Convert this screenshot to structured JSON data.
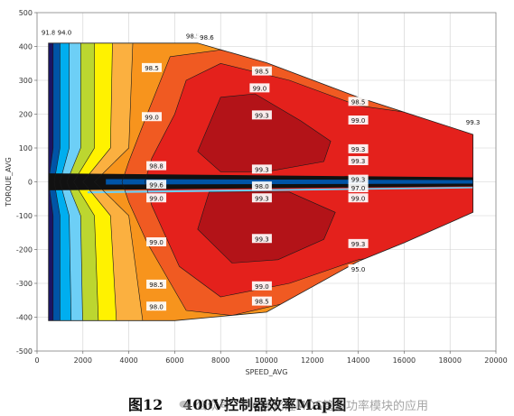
{
  "chart_data": {
    "type": "heatmap",
    "subtype": "filled-contour",
    "xlabel": "SPEED_AVG",
    "ylabel": "TORQUE_AVG",
    "xlim": [
      0,
      20000
    ],
    "ylim": [
      -500,
      500
    ],
    "xticks": [
      0,
      2000,
      4000,
      6000,
      8000,
      10000,
      12000,
      14000,
      16000,
      18000,
      20000
    ],
    "yticks": [
      500,
      400,
      300,
      200,
      100,
      0,
      -100,
      -200,
      -300,
      -400,
      -500
    ],
    "grid": true,
    "boundary_upper": [
      [
        500,
        410
      ],
      [
        7000,
        410
      ],
      [
        10000,
        352
      ],
      [
        14000,
        250
      ],
      [
        19000,
        140
      ]
    ],
    "boundary_lower": [
      [
        19000,
        -90
      ],
      [
        16000,
        -180
      ],
      [
        14000,
        -235
      ],
      [
        10000,
        -385
      ],
      [
        6000,
        -410
      ],
      [
        500,
        -410
      ]
    ],
    "colors": {
      "dark_red": "#b31318",
      "red": "#e4211c",
      "orange_red": "#f05a22",
      "orange": "#f7941d",
      "yellow_orange": "#fbb040",
      "yellow": "#fff200",
      "yellow_green": "#bcd630",
      "light_blue": "#6dcff6",
      "blue": "#00aeef",
      "deep_blue": "#0054a6",
      "navy": "#1b1464",
      "black": "#111111"
    },
    "contour_labels": [
      {
        "x": 500,
        "y": 440,
        "text": "91.8"
      },
      {
        "x": 1200,
        "y": 440,
        "text": "94.0"
      },
      {
        "x": 6800,
        "y": 430,
        "text": "98.5"
      },
      {
        "x": 7400,
        "y": 425,
        "text": "98.6"
      },
      {
        "x": 5000,
        "y": 335,
        "text": "98.5"
      },
      {
        "x": 5000,
        "y": 190,
        "text": "99.0"
      },
      {
        "x": 9800,
        "y": 325,
        "text": "98.5"
      },
      {
        "x": 9700,
        "y": 275,
        "text": "99.0"
      },
      {
        "x": 9800,
        "y": 195,
        "text": "99.3"
      },
      {
        "x": 14000,
        "y": 235,
        "text": "98.5"
      },
      {
        "x": 14000,
        "y": 180,
        "text": "99.0"
      },
      {
        "x": 19000,
        "y": 175,
        "text": "99.3"
      },
      {
        "x": 14000,
        "y": 95,
        "text": "99.3"
      },
      {
        "x": 14000,
        "y": 60,
        "text": "99.3"
      },
      {
        "x": 5200,
        "y": 45,
        "text": "98.8"
      },
      {
        "x": 5200,
        "y": -10,
        "text": "99.6"
      },
      {
        "x": 5200,
        "y": -50,
        "text": "99.0"
      },
      {
        "x": 9800,
        "y": 35,
        "text": "99.3"
      },
      {
        "x": 9800,
        "y": -15,
        "text": "98.0"
      },
      {
        "x": 9800,
        "y": -50,
        "text": "99.3"
      },
      {
        "x": 14000,
        "y": 5,
        "text": "99.3"
      },
      {
        "x": 14000,
        "y": -20,
        "text": "97.0"
      },
      {
        "x": 14000,
        "y": -50,
        "text": "99.0"
      },
      {
        "x": 5200,
        "y": -180,
        "text": "99.0"
      },
      {
        "x": 9800,
        "y": -170,
        "text": "99.3"
      },
      {
        "x": 14000,
        "y": -185,
        "text": "99.3"
      },
      {
        "x": 14000,
        "y": -260,
        "text": "95.0"
      },
      {
        "x": 5200,
        "y": -305,
        "text": "98.5"
      },
      {
        "x": 5200,
        "y": -370,
        "text": "98.0"
      },
      {
        "x": 9800,
        "y": -310,
        "text": "99.0"
      },
      {
        "x": 9800,
        "y": -355,
        "text": "98.5"
      }
    ]
  },
  "caption": {
    "figure_number": "图12",
    "title": "400V控制器效率Map图"
  },
  "watermark": {
    "text": "公众号 · SiC碳化硅MOS管及功率模块的应用",
    "icon": "wechat-icon"
  }
}
